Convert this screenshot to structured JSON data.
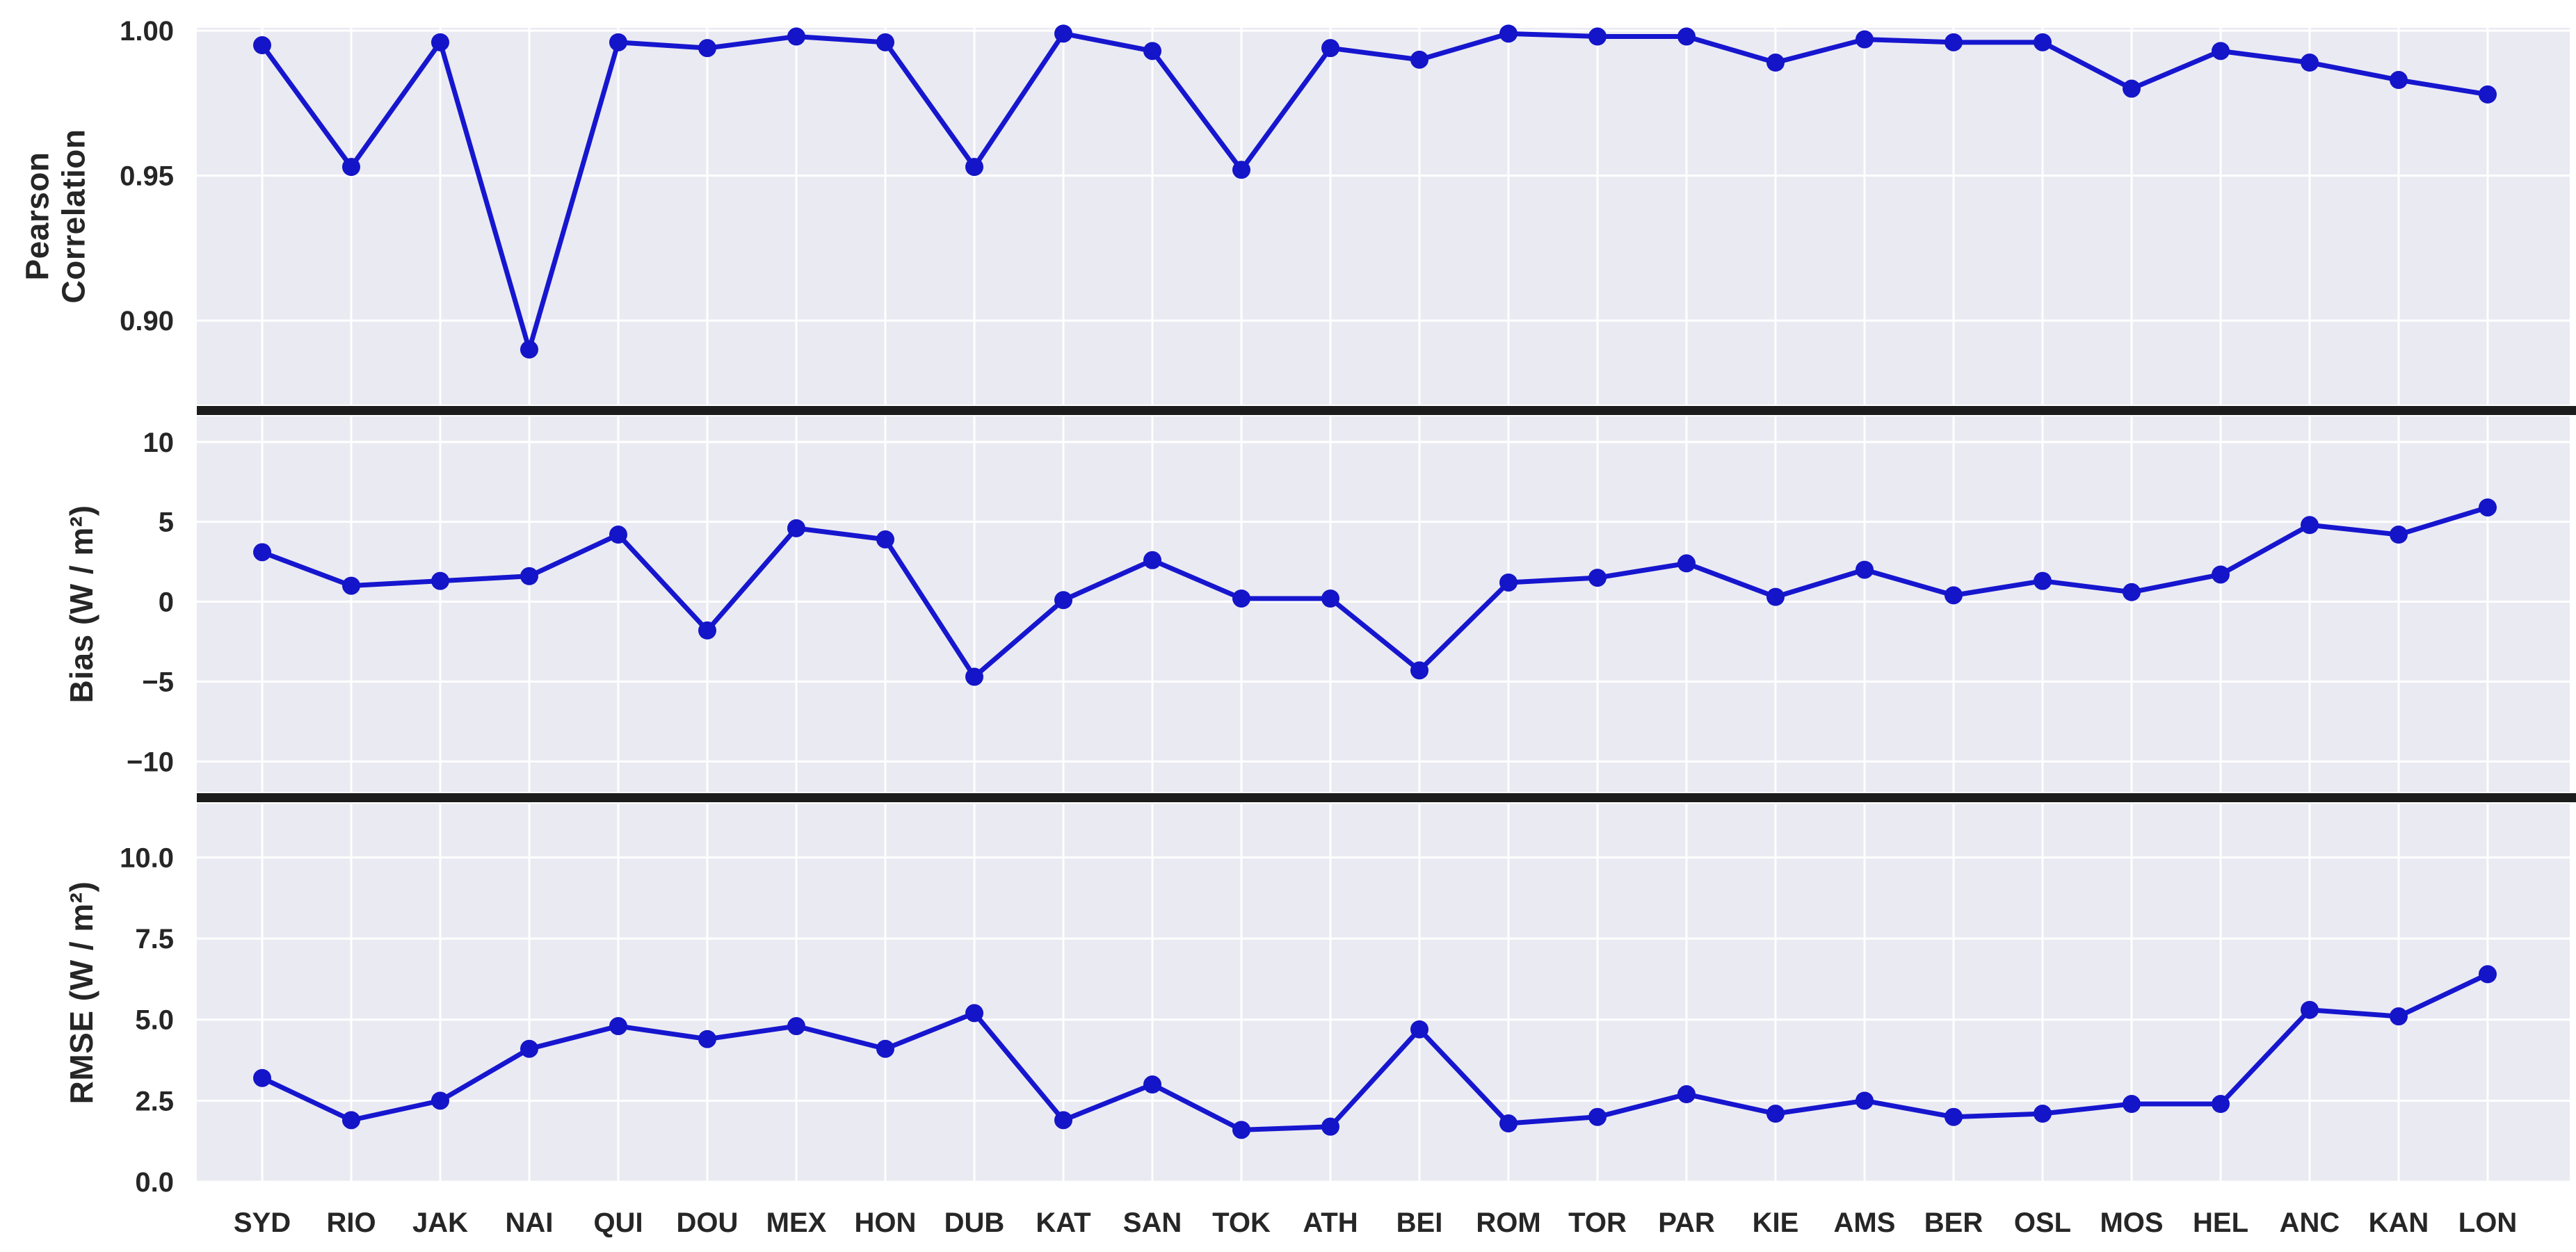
{
  "chart_data": {
    "type": "line",
    "categories": [
      "SYD",
      "RIO",
      "JAK",
      "NAI",
      "QUI",
      "DOU",
      "MEX",
      "HON",
      "DUB",
      "KAT",
      "SAN",
      "TOK",
      "ATH",
      "BEI",
      "ROM",
      "TOR",
      "PAR",
      "KIE",
      "AMS",
      "BER",
      "OSL",
      "MOS",
      "HEL",
      "ANC",
      "KAN",
      "LON"
    ],
    "series": [
      {
        "name": "Pearson Correlation",
        "panel": "pearson",
        "values": [
          0.995,
          0.953,
          0.996,
          0.89,
          0.996,
          0.994,
          0.998,
          0.996,
          0.953,
          0.999,
          0.993,
          0.952,
          0.994,
          0.99,
          0.999,
          0.998,
          0.998,
          0.989,
          0.997,
          0.996,
          0.996,
          0.98,
          0.993,
          0.989,
          0.983,
          0.978
        ]
      },
      {
        "name": "Bias (W / m²)",
        "panel": "bias",
        "values": [
          3.1,
          1.0,
          1.3,
          1.6,
          4.2,
          -1.8,
          4.6,
          3.9,
          -4.7,
          0.1,
          2.6,
          0.2,
          0.2,
          -4.3,
          1.2,
          1.5,
          2.4,
          0.3,
          2.0,
          0.4,
          1.3,
          0.6,
          1.7,
          4.8,
          4.2,
          5.9
        ]
      },
      {
        "name": "RMSE (W / m²)",
        "panel": "rmse",
        "values": [
          3.2,
          1.9,
          2.5,
          4.1,
          4.8,
          4.4,
          4.8,
          4.1,
          5.2,
          1.9,
          3.0,
          1.6,
          1.7,
          4.7,
          1.8,
          2.0,
          2.7,
          2.1,
          2.5,
          2.0,
          2.1,
          2.4,
          2.4,
          5.3,
          5.1,
          6.4
        ]
      }
    ],
    "panels": [
      {
        "id": "pearson",
        "ylabel": "Pearson\nCorrelation",
        "ylim": [
          0.871,
          1.001
        ],
        "yticks": [
          {
            "value": 1.0,
            "label": "1.00"
          },
          {
            "value": 0.95,
            "label": "0.95"
          },
          {
            "value": 0.9,
            "label": "0.90"
          }
        ]
      },
      {
        "id": "bias",
        "ylabel": "Bias (W / m²)",
        "ylim": [
          -11.9,
          11.6
        ],
        "yticks": [
          {
            "value": 10,
            "label": "10"
          },
          {
            "value": 5,
            "label": "5"
          },
          {
            "value": 0,
            "label": "0"
          },
          {
            "value": -5,
            "label": "−5"
          },
          {
            "value": -10,
            "label": "−10"
          }
        ]
      },
      {
        "id": "rmse",
        "ylabel": "RMSE (W / m²)",
        "ylim": [
          0,
          11.66
        ],
        "yticks": [
          {
            "value": 10.0,
            "label": "10.0"
          },
          {
            "value": 7.5,
            "label": "7.5"
          },
          {
            "value": 5.0,
            "label": "5.0"
          },
          {
            "value": 2.5,
            "label": "2.5"
          },
          {
            "value": 0.0,
            "label": "0.0"
          }
        ]
      }
    ],
    "legend": "none",
    "grid": true,
    "colors": {
      "line": "#1616cf",
      "marker": "#1414c8",
      "plot_background": "#eaeaf2",
      "gridline": "#ffffff",
      "text": "#262626",
      "separator": "#1c1c1c",
      "figure_background": "#ffffff"
    }
  }
}
